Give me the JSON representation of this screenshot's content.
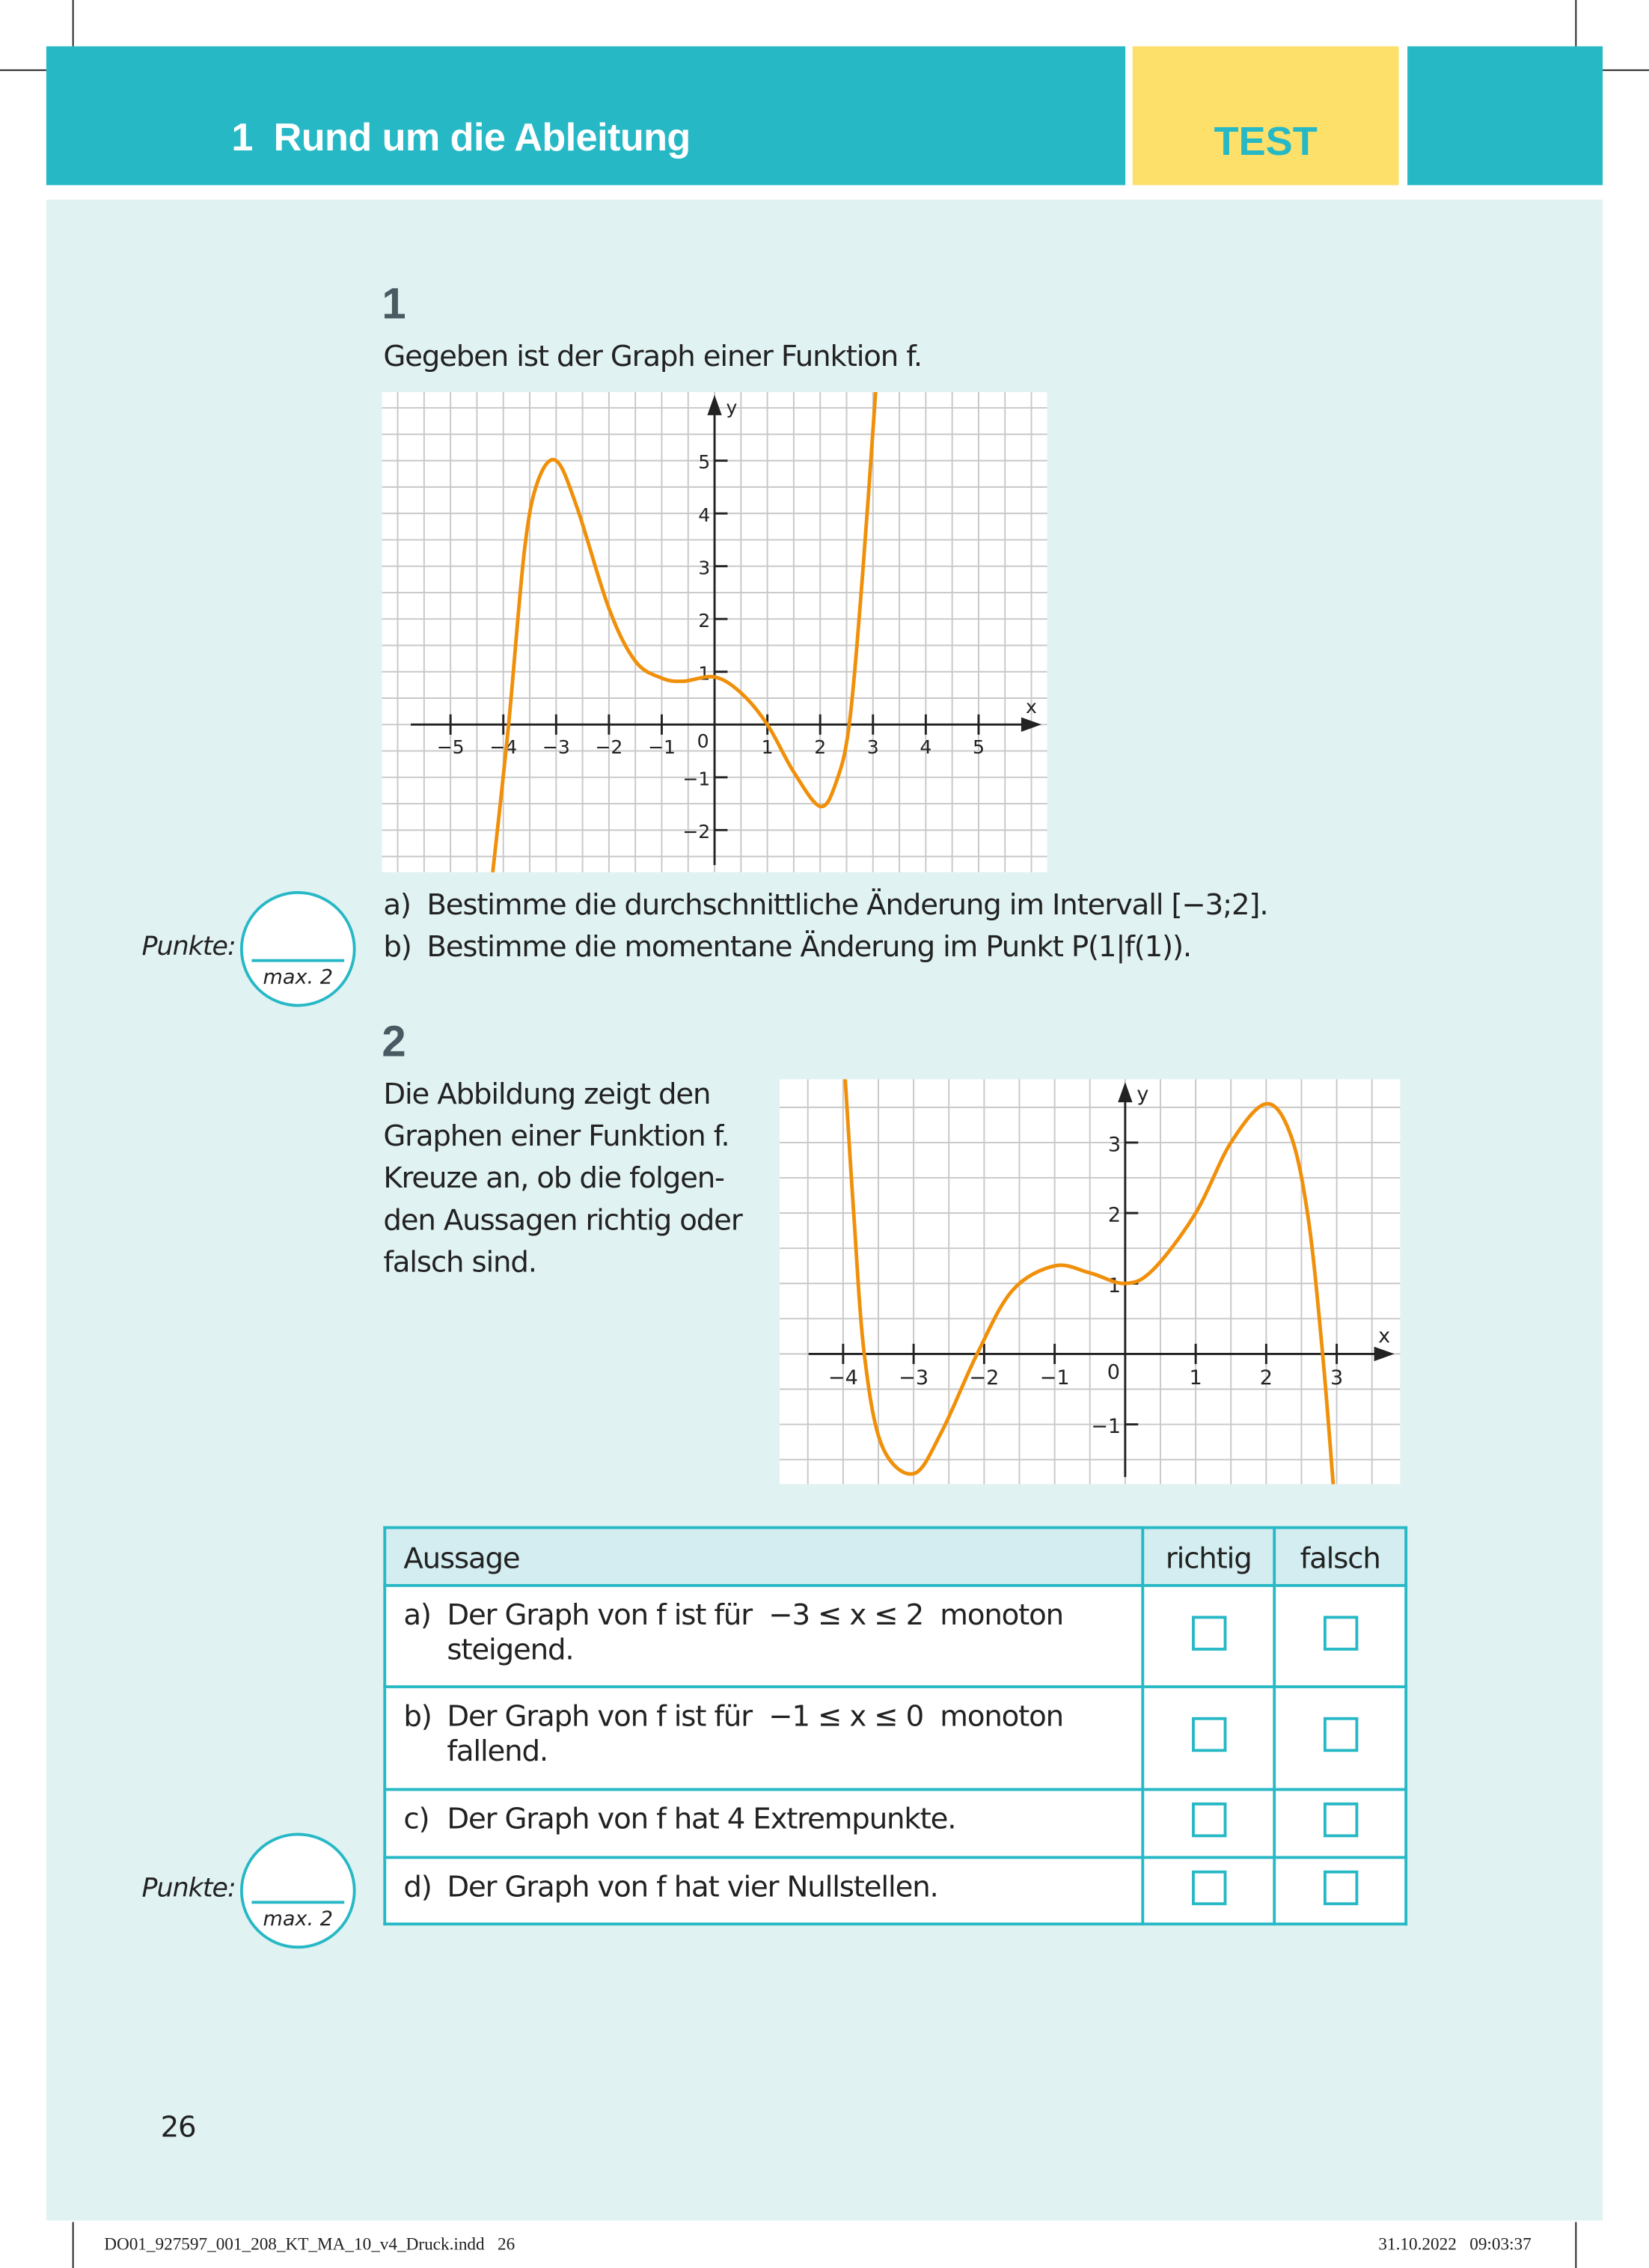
{
  "header": {
    "chapter_title": "1  Rund um die Ableitung",
    "badge": "TEST"
  },
  "colors": {
    "accent": "#27b8c6",
    "badge_bg": "#fde06a",
    "panel_bg": "#e1f2f2",
    "curve": "#f0900a"
  },
  "task1": {
    "number": "1",
    "intro": "Gegeben ist der Graph einer Funktion f.",
    "items": [
      {
        "label": "a)",
        "text": "Bestimme die durchschnittliche Änderung im Intervall [−3;2]."
      },
      {
        "label": "b)",
        "text": "Bestimme die momentane Änderung im Punkt P(1|f(1))."
      }
    ],
    "score": {
      "label": "Punkte:",
      "max": "max. 2"
    }
  },
  "task2": {
    "number": "2",
    "intro_lines": [
      "Die Abbildung zeigt den",
      "Graphen einer Funktion f.",
      "Kreuze an, ob die folgen-",
      "den Aussagen richtig oder",
      "falsch sind."
    ],
    "table": {
      "headers": [
        "Aussage",
        "richtig",
        "falsch"
      ],
      "rows": [
        {
          "label": "a)",
          "line1": "Der Graph von f ist für  −3 ≤ x ≤ 2  monoton",
          "line2": "steigend."
        },
        {
          "label": "b)",
          "line1": "Der Graph von f ist für  −1 ≤ x ≤ 0  monoton",
          "line2": "fallend."
        },
        {
          "label": "c)",
          "line1": "Der Graph von f hat 4 Extrempunkte.",
          "line2": ""
        },
        {
          "label": "d)",
          "line1": "Der Graph von f hat vier Nullstellen.",
          "line2": ""
        }
      ]
    },
    "score": {
      "label": "Punkte:",
      "max": "max. 2"
    }
  },
  "page_number": "26",
  "footer": {
    "file": "DO01_927597_001_208_KT_MA_10_v4_Druck.indd   26",
    "timestamp": "31.10.2022   09:03:37"
  },
  "chart_data": [
    {
      "type": "line",
      "xlabel": "x",
      "ylabel": "y",
      "xlim": [
        -6.3,
        6.3
      ],
      "ylim": [
        -2.8,
        6.3
      ],
      "x_ticks": [
        "−5",
        "−4",
        "−3",
        "−2",
        "−1",
        "1",
        "2",
        "3",
        "4",
        "5"
      ],
      "y_ticks": [
        "−2",
        "−1",
        "1",
        "2",
        "3",
        "4",
        "5"
      ],
      "origin_label": "0",
      "grid": true,
      "points": [
        [
          -4.2,
          -2.8
        ],
        [
          -3.9,
          0
        ],
        [
          -3.6,
          3.3
        ],
        [
          -3.35,
          4.6
        ],
        [
          -3,
          5
        ],
        [
          -2.6,
          4.1
        ],
        [
          -2,
          2.2
        ],
        [
          -1.5,
          1.2
        ],
        [
          -1,
          0.88
        ],
        [
          -0.6,
          0.82
        ],
        [
          0,
          0.9
        ],
        [
          0.5,
          0.6
        ],
        [
          1,
          0
        ],
        [
          1.5,
          -0.9
        ],
        [
          2,
          -1.55
        ],
        [
          2.3,
          -1.1
        ],
        [
          2.55,
          0
        ],
        [
          2.8,
          2.8
        ],
        [
          3.05,
          6.3
        ]
      ]
    },
    {
      "type": "line",
      "xlabel": "x",
      "ylabel": "y",
      "xlim": [
        -4.9,
        3.9
      ],
      "ylim": [
        -1.85,
        3.9
      ],
      "x_ticks": [
        "−4",
        "−3",
        "−2",
        "−1",
        "1",
        "2",
        "3"
      ],
      "y_ticks": [
        "−1",
        "1",
        "2",
        "3"
      ],
      "origin_label": "0",
      "grid": true,
      "points": [
        [
          -3.97,
          3.9
        ],
        [
          -3.85,
          2
        ],
        [
          -3.7,
          0
        ],
        [
          -3.45,
          -1.3
        ],
        [
          -3,
          -1.7
        ],
        [
          -2.6,
          -1.1
        ],
        [
          -2.1,
          0
        ],
        [
          -1.6,
          0.9
        ],
        [
          -1,
          1.25
        ],
        [
          -0.5,
          1.15
        ],
        [
          0,
          1
        ],
        [
          0.4,
          1.2
        ],
        [
          1,
          2
        ],
        [
          1.5,
          3.0
        ],
        [
          2,
          3.55
        ],
        [
          2.35,
          3.1
        ],
        [
          2.6,
          1.9
        ],
        [
          2.8,
          0
        ],
        [
          2.95,
          -1.85
        ]
      ]
    }
  ]
}
